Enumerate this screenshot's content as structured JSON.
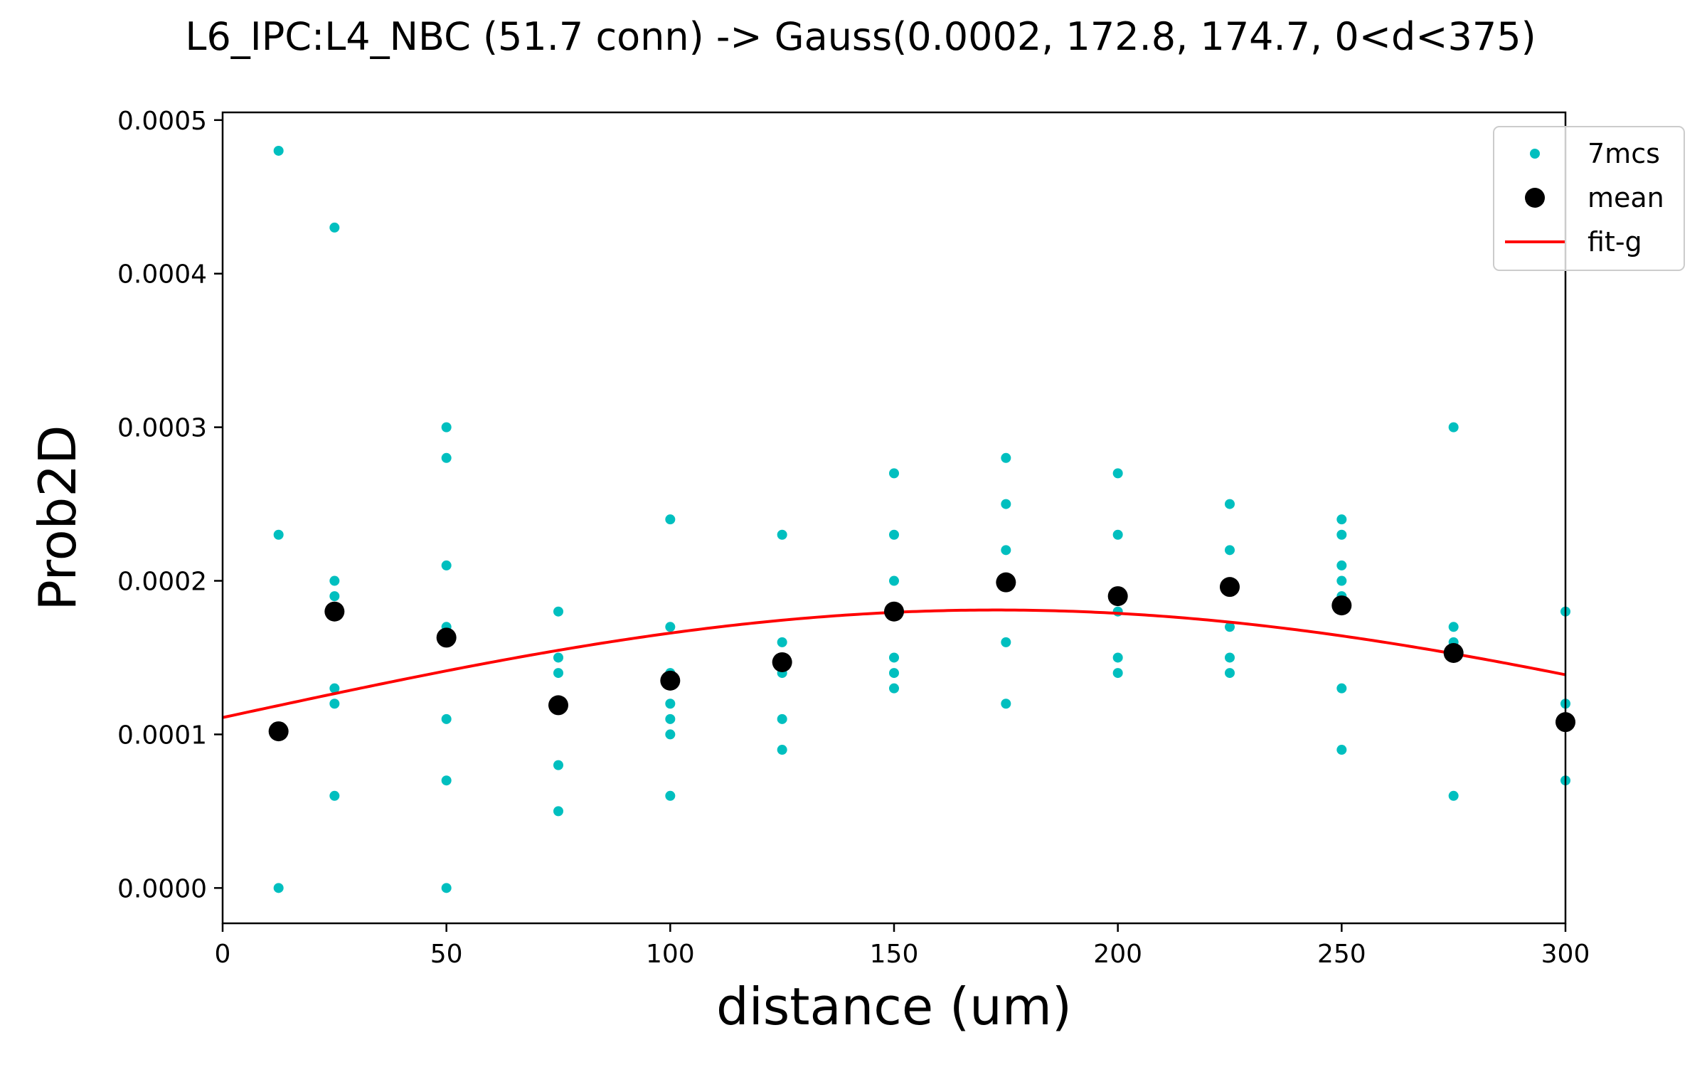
{
  "chart_data": {
    "type": "scatter",
    "title": "L6_IPC:L4_NBC (51.7 conn) -> Gauss(0.0002, 172.8, 174.7, 0<d<375)",
    "xlabel": "distance (um)",
    "ylabel": "Prob2D",
    "xlim": [
      0,
      300
    ],
    "ylim": [
      -2.3e-05,
      0.000505
    ],
    "xticks": [
      0,
      50,
      100,
      150,
      200,
      250,
      300
    ],
    "xtick_labels": [
      "0",
      "50",
      "100",
      "150",
      "200",
      "250",
      "300"
    ],
    "yticks": [
      0.0,
      0.0001,
      0.0002,
      0.0003,
      0.0004,
      0.0005
    ],
    "ytick_labels": [
      "0.0000",
      "0.0001",
      "0.0002",
      "0.0003",
      "0.0004",
      "0.0005"
    ],
    "grid": false,
    "legend_position": "top-right",
    "legend": [
      "7mcs",
      "mean",
      "fit-g"
    ],
    "series": [
      {
        "name": "7mcs",
        "kind": "scatter-small",
        "color": "#00bfbf",
        "points": [
          [
            12.5,
            0.00048
          ],
          [
            12.5,
            0.00023
          ],
          [
            12.5,
            0.0
          ],
          [
            25,
            0.00043
          ],
          [
            25,
            0.0002
          ],
          [
            25,
            0.00019
          ],
          [
            25,
            0.00013
          ],
          [
            25,
            0.00012
          ],
          [
            25,
            6e-05
          ],
          [
            50,
            0.0003
          ],
          [
            50,
            0.00028
          ],
          [
            50,
            0.00021
          ],
          [
            50,
            0.00017
          ],
          [
            50,
            0.00011
          ],
          [
            50,
            7e-05
          ],
          [
            50,
            0.0
          ],
          [
            75,
            0.00018
          ],
          [
            75,
            0.00015
          ],
          [
            75,
            0.00014
          ],
          [
            75,
            8e-05
          ],
          [
            75,
            5e-05
          ],
          [
            100,
            0.00024
          ],
          [
            100,
            0.00017
          ],
          [
            100,
            0.00014
          ],
          [
            100,
            0.00012
          ],
          [
            100,
            0.00011
          ],
          [
            100,
            0.0001
          ],
          [
            100,
            6e-05
          ],
          [
            125,
            0.00023
          ],
          [
            125,
            0.00016
          ],
          [
            125,
            0.00014
          ],
          [
            125,
            0.00011
          ],
          [
            125,
            9e-05
          ],
          [
            150,
            0.00027
          ],
          [
            150,
            0.00023
          ],
          [
            150,
            0.0002
          ],
          [
            150,
            0.00015
          ],
          [
            150,
            0.00014
          ],
          [
            150,
            0.00013
          ],
          [
            175,
            0.00028
          ],
          [
            175,
            0.00025
          ],
          [
            175,
            0.00022
          ],
          [
            175,
            0.00016
          ],
          [
            175,
            0.00012
          ],
          [
            200,
            0.00027
          ],
          [
            200,
            0.00023
          ],
          [
            200,
            0.00018
          ],
          [
            200,
            0.00015
          ],
          [
            200,
            0.00014
          ],
          [
            225,
            0.00025
          ],
          [
            225,
            0.00022
          ],
          [
            225,
            0.00017
          ],
          [
            225,
            0.00015
          ],
          [
            225,
            0.00014
          ],
          [
            250,
            0.00024
          ],
          [
            250,
            0.00023
          ],
          [
            250,
            0.00021
          ],
          [
            250,
            0.0002
          ],
          [
            250,
            0.00019
          ],
          [
            250,
            0.00013
          ],
          [
            250,
            9e-05
          ],
          [
            275,
            0.0003
          ],
          [
            275,
            0.00017
          ],
          [
            275,
            0.00016
          ],
          [
            275,
            0.00015
          ],
          [
            275,
            6e-05
          ],
          [
            300,
            0.00018
          ],
          [
            300,
            0.00012
          ],
          [
            300,
            7e-05
          ]
        ]
      },
      {
        "name": "mean",
        "kind": "scatter-large",
        "color": "#000000",
        "points": [
          [
            12.5,
            0.000102
          ],
          [
            25,
            0.00018
          ],
          [
            50,
            0.000163
          ],
          [
            75,
            0.000119
          ],
          [
            100,
            0.000135
          ],
          [
            125,
            0.000147
          ],
          [
            150,
            0.00018
          ],
          [
            175,
            0.000199
          ],
          [
            200,
            0.00019
          ],
          [
            225,
            0.000196
          ],
          [
            250,
            0.000184
          ],
          [
            275,
            0.000153
          ],
          [
            300,
            0.000108
          ]
        ]
      },
      {
        "name": "fit-g",
        "kind": "line",
        "color": "#ff0000",
        "gauss": {
          "amplitude": 0.000181,
          "mu": 172.8,
          "sigma": 174.7
        }
      }
    ]
  }
}
